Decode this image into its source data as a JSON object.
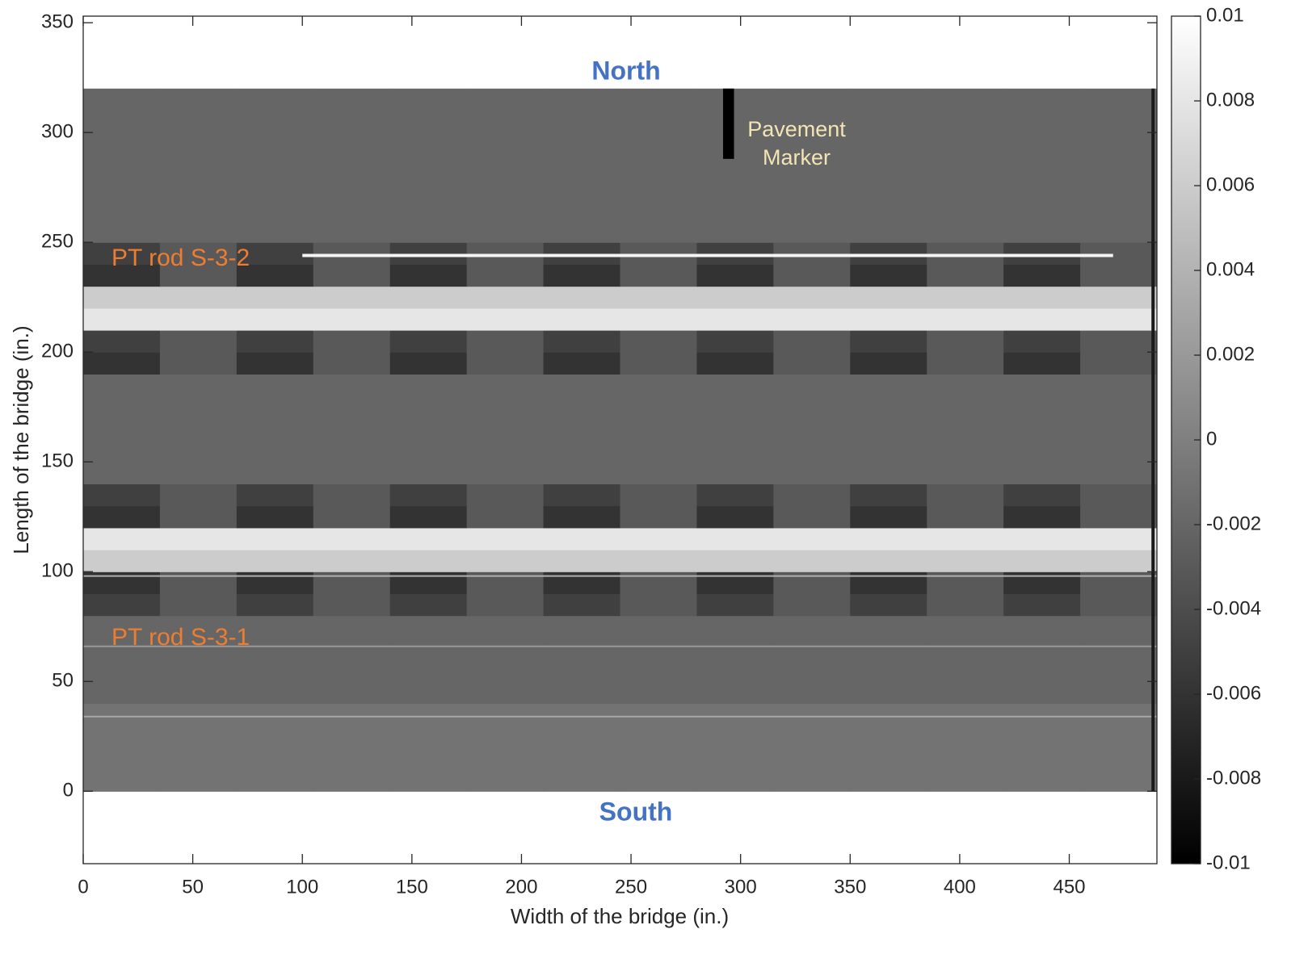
{
  "chart_data": {
    "type": "heatmap",
    "x_label": "Width of the bridge (in.)",
    "y_label": "Length of the bridge (in.)",
    "xlim": [
      0,
      490
    ],
    "ylim": [
      -33,
      353
    ],
    "xticks": [
      0,
      50,
      100,
      150,
      200,
      250,
      300,
      350,
      400,
      450
    ],
    "yticks": [
      0,
      50,
      100,
      150,
      200,
      250,
      300,
      350
    ],
    "clim": [
      -0.01,
      0.01
    ],
    "cticks": [
      0.01,
      0.008,
      0.006,
      0.004,
      0.002,
      0,
      -0.002,
      -0.004,
      -0.006,
      -0.008,
      -0.01
    ],
    "colormap": "gray",
    "annotations": {
      "north": "North",
      "south": "South",
      "rod_upper": "PT rod S-3-2",
      "rod_lower": "PT rod S-3-1",
      "marker": [
        "Pavement",
        "Marker"
      ]
    },
    "x": [
      17.5,
      52.5,
      87.5,
      122.5,
      157.5,
      192.5,
      227.5,
      262.5,
      297.5,
      332.5,
      367.5,
      402.5,
      437.5,
      472.5
    ],
    "y": [
      5,
      15,
      25,
      35,
      45,
      55,
      65,
      75,
      85,
      95,
      105,
      115,
      125,
      135,
      145,
      155,
      165,
      175,
      185,
      195,
      205,
      215,
      225,
      235,
      245,
      255,
      265,
      275,
      285,
      295,
      305,
      315
    ],
    "z": [
      [
        -0.001,
        -0.001,
        -0.001,
        -0.001,
        -0.001,
        -0.001,
        -0.001,
        -0.001,
        -0.001,
        -0.001,
        -0.001,
        -0.001,
        -0.001,
        -0.001
      ],
      [
        -0.001,
        -0.001,
        -0.001,
        -0.001,
        -0.001,
        -0.001,
        -0.001,
        -0.001,
        -0.001,
        -0.001,
        -0.001,
        -0.001,
        -0.001,
        -0.001
      ],
      [
        -0.001,
        -0.001,
        -0.001,
        -0.001,
        -0.001,
        -0.001,
        -0.001,
        -0.001,
        -0.001,
        -0.001,
        -0.001,
        -0.001,
        -0.001,
        -0.001
      ],
      [
        -0.001,
        -0.001,
        -0.001,
        -0.001,
        -0.001,
        -0.001,
        -0.001,
        -0.001,
        -0.001,
        -0.001,
        -0.001,
        -0.001,
        -0.001,
        -0.001
      ],
      [
        -0.002,
        -0.002,
        -0.002,
        -0.002,
        -0.002,
        -0.002,
        -0.002,
        -0.002,
        -0.002,
        -0.002,
        -0.002,
        -0.002,
        -0.002,
        -0.002
      ],
      [
        -0.002,
        -0.002,
        -0.002,
        -0.002,
        -0.002,
        -0.002,
        -0.002,
        -0.002,
        -0.002,
        -0.002,
        -0.002,
        -0.002,
        -0.002,
        -0.002
      ],
      [
        -0.002,
        -0.002,
        -0.002,
        -0.002,
        -0.002,
        -0.002,
        -0.002,
        -0.002,
        -0.002,
        -0.002,
        -0.002,
        -0.002,
        -0.002,
        -0.002
      ],
      [
        -0.002,
        -0.002,
        -0.002,
        -0.002,
        -0.002,
        -0.002,
        -0.002,
        -0.002,
        -0.002,
        -0.002,
        -0.002,
        -0.002,
        -0.002,
        -0.002
      ],
      [
        -0.005,
        -0.003,
        -0.005,
        -0.003,
        -0.005,
        -0.003,
        -0.005,
        -0.003,
        -0.005,
        -0.003,
        -0.005,
        -0.003,
        -0.005,
        -0.003
      ],
      [
        -0.006,
        -0.003,
        -0.006,
        -0.003,
        -0.006,
        -0.003,
        -0.006,
        -0.003,
        -0.006,
        -0.003,
        -0.006,
        -0.003,
        -0.006,
        -0.003
      ],
      [
        0.006,
        0.006,
        0.006,
        0.006,
        0.006,
        0.006,
        0.006,
        0.006,
        0.006,
        0.006,
        0.006,
        0.006,
        0.006,
        0.006
      ],
      [
        0.008,
        0.008,
        0.008,
        0.008,
        0.008,
        0.008,
        0.008,
        0.008,
        0.008,
        0.008,
        0.008,
        0.008,
        0.008,
        0.008
      ],
      [
        -0.006,
        -0.003,
        -0.006,
        -0.003,
        -0.006,
        -0.003,
        -0.006,
        -0.003,
        -0.006,
        -0.003,
        -0.006,
        -0.003,
        -0.006,
        -0.003
      ],
      [
        -0.005,
        -0.003,
        -0.005,
        -0.003,
        -0.005,
        -0.003,
        -0.005,
        -0.003,
        -0.005,
        -0.003,
        -0.005,
        -0.003,
        -0.005,
        -0.003
      ],
      [
        -0.002,
        -0.002,
        -0.002,
        -0.002,
        -0.002,
        -0.002,
        -0.002,
        -0.002,
        -0.002,
        -0.002,
        -0.002,
        -0.002,
        -0.002,
        -0.002
      ],
      [
        -0.002,
        -0.002,
        -0.002,
        -0.002,
        -0.002,
        -0.002,
        -0.002,
        -0.002,
        -0.002,
        -0.002,
        -0.002,
        -0.002,
        -0.002,
        -0.002
      ],
      [
        -0.002,
        -0.002,
        -0.002,
        -0.002,
        -0.002,
        -0.002,
        -0.002,
        -0.002,
        -0.002,
        -0.002,
        -0.002,
        -0.002,
        -0.002,
        -0.002
      ],
      [
        -0.002,
        -0.002,
        -0.002,
        -0.002,
        -0.002,
        -0.002,
        -0.002,
        -0.002,
        -0.002,
        -0.002,
        -0.002,
        -0.002,
        -0.002,
        -0.002
      ],
      [
        -0.002,
        -0.002,
        -0.002,
        -0.002,
        -0.002,
        -0.002,
        -0.002,
        -0.002,
        -0.002,
        -0.002,
        -0.002,
        -0.002,
        -0.002,
        -0.002
      ],
      [
        -0.006,
        -0.003,
        -0.006,
        -0.003,
        -0.006,
        -0.003,
        -0.006,
        -0.003,
        -0.006,
        -0.003,
        -0.006,
        -0.003,
        -0.006,
        -0.003
      ],
      [
        -0.005,
        -0.003,
        -0.005,
        -0.003,
        -0.005,
        -0.003,
        -0.005,
        -0.003,
        -0.005,
        -0.003,
        -0.005,
        -0.003,
        -0.005,
        -0.003
      ],
      [
        0.008,
        0.008,
        0.008,
        0.008,
        0.008,
        0.008,
        0.008,
        0.008,
        0.008,
        0.008,
        0.008,
        0.008,
        0.008,
        0.008
      ],
      [
        0.006,
        0.006,
        0.006,
        0.006,
        0.006,
        0.006,
        0.006,
        0.006,
        0.006,
        0.006,
        0.006,
        0.006,
        0.006,
        0.006
      ],
      [
        -0.006,
        -0.003,
        -0.006,
        -0.003,
        -0.006,
        -0.003,
        -0.006,
        -0.003,
        -0.006,
        -0.003,
        -0.006,
        -0.003,
        -0.006,
        -0.003
      ],
      [
        -0.005,
        -0.003,
        -0.005,
        -0.003,
        -0.005,
        -0.003,
        -0.005,
        -0.003,
        -0.005,
        -0.003,
        -0.005,
        -0.003,
        -0.005,
        -0.003
      ],
      [
        -0.002,
        -0.002,
        -0.002,
        -0.002,
        -0.002,
        -0.002,
        -0.002,
        -0.002,
        -0.002,
        -0.002,
        -0.002,
        -0.002,
        -0.002,
        -0.002
      ],
      [
        -0.002,
        -0.002,
        -0.002,
        -0.002,
        -0.002,
        -0.002,
        -0.002,
        -0.002,
        -0.002,
        -0.002,
        -0.002,
        -0.002,
        -0.002,
        -0.002
      ],
      [
        -0.002,
        -0.002,
        -0.002,
        -0.002,
        -0.002,
        -0.002,
        -0.002,
        -0.002,
        -0.002,
        -0.002,
        -0.002,
        -0.002,
        -0.002,
        -0.002
      ],
      [
        -0.002,
        -0.002,
        -0.002,
        -0.002,
        -0.002,
        -0.002,
        -0.002,
        -0.002,
        -0.002,
        -0.002,
        -0.002,
        -0.002,
        -0.002,
        -0.002
      ],
      [
        -0.002,
        -0.002,
        -0.002,
        -0.002,
        -0.002,
        -0.002,
        -0.002,
        -0.002,
        -0.002,
        -0.002,
        -0.002,
        -0.002,
        -0.002,
        -0.002
      ],
      [
        -0.002,
        -0.002,
        -0.002,
        -0.002,
        -0.002,
        -0.002,
        -0.002,
        -0.002,
        -0.002,
        -0.002,
        -0.002,
        -0.002,
        -0.002,
        -0.002
      ],
      [
        -0.002,
        -0.002,
        -0.002,
        -0.002,
        -0.002,
        -0.002,
        -0.002,
        -0.002,
        -0.002,
        -0.002,
        -0.002,
        -0.002,
        -0.002,
        -0.002
      ]
    ]
  }
}
